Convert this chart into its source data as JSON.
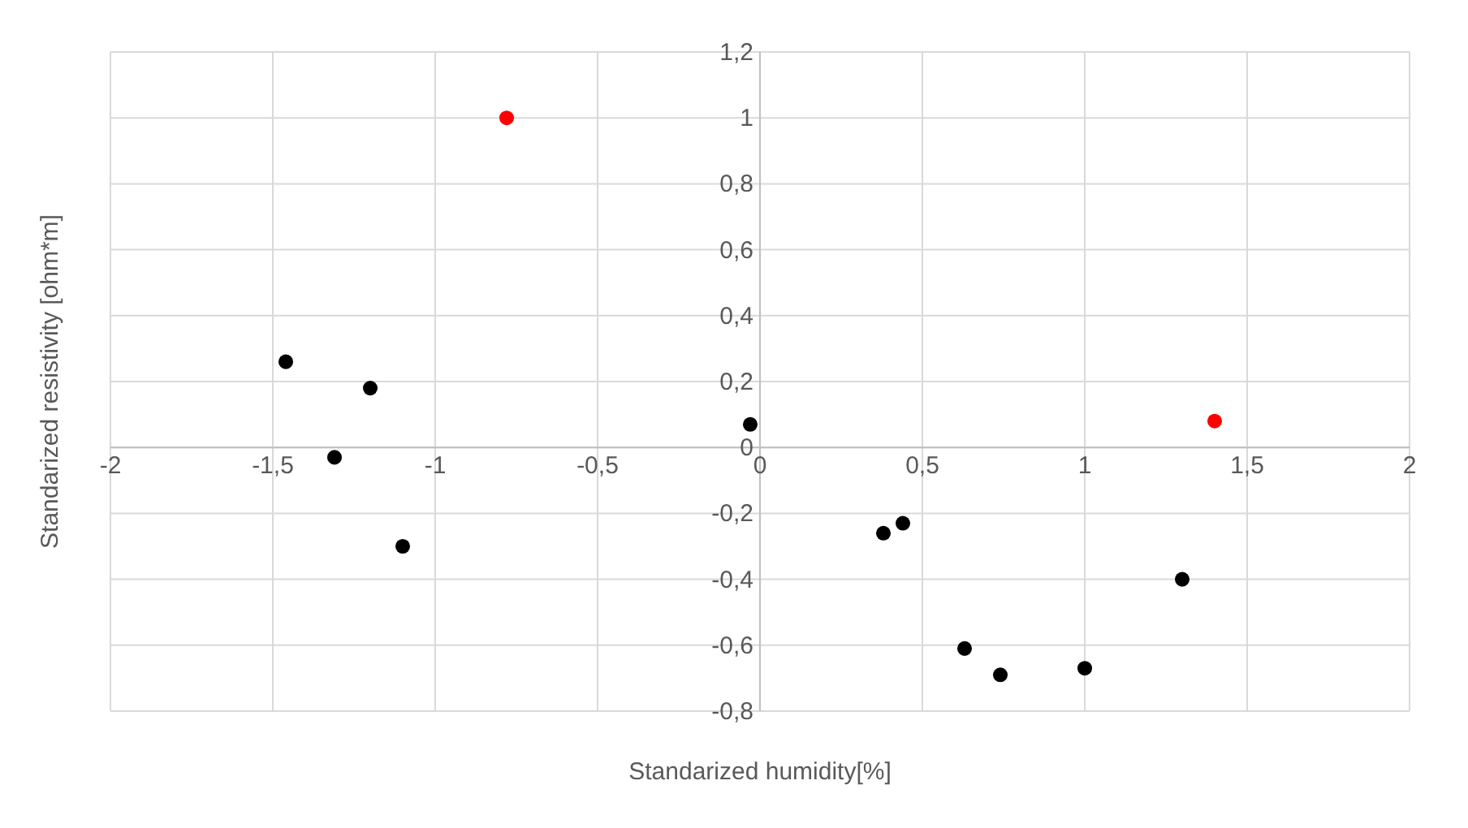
{
  "chart_data": {
    "type": "scatter",
    "xlabel": "Standarized humidity[%]",
    "ylabel": "Standarized resistivity [ohm*m]",
    "series": [
      {
        "color": "#000000",
        "x": [
          -1.46,
          -1.2,
          -1.31,
          -1.1,
          -0.03,
          0.38,
          0.44,
          0.63,
          0.74,
          1.0,
          1.3
        ],
        "values": [
          0.26,
          0.18,
          -0.03,
          -0.3,
          0.07,
          -0.26,
          -0.23,
          -0.61,
          -0.69,
          -0.67,
          -0.4
        ]
      },
      {
        "color": "#ff0000",
        "x": [
          -0.78,
          1.4
        ],
        "values": [
          1.0,
          0.08
        ]
      }
    ],
    "xlim": [
      -2,
      2
    ],
    "xticks": [
      -2,
      {
        "value": -1.5,
        "label": "-1,5"
      },
      -1,
      {
        "value": -0.5,
        "label": "-0,5"
      },
      0,
      {
        "value": 0.5,
        "label": "0,5"
      },
      1,
      {
        "value": 1.5,
        "label": "1,5"
      },
      2
    ],
    "ylim": [
      -0.8,
      1.2
    ],
    "yticks": [
      {
        "value": -0.8,
        "label": "-0,8"
      },
      {
        "value": -0.6,
        "label": "-0,6"
      },
      {
        "value": -0.4,
        "label": "-0,4"
      },
      {
        "value": -0.2,
        "label": "-0,2"
      },
      0,
      {
        "value": 0.2,
        "label": "0,2"
      },
      {
        "value": 0.4,
        "label": "0,4"
      },
      {
        "value": 0.6,
        "label": "0,6"
      },
      {
        "value": 0.8,
        "label": "0,8"
      },
      1,
      {
        "value": 1.2,
        "label": "1,2"
      }
    ],
    "grid": true,
    "marker": "circle"
  }
}
